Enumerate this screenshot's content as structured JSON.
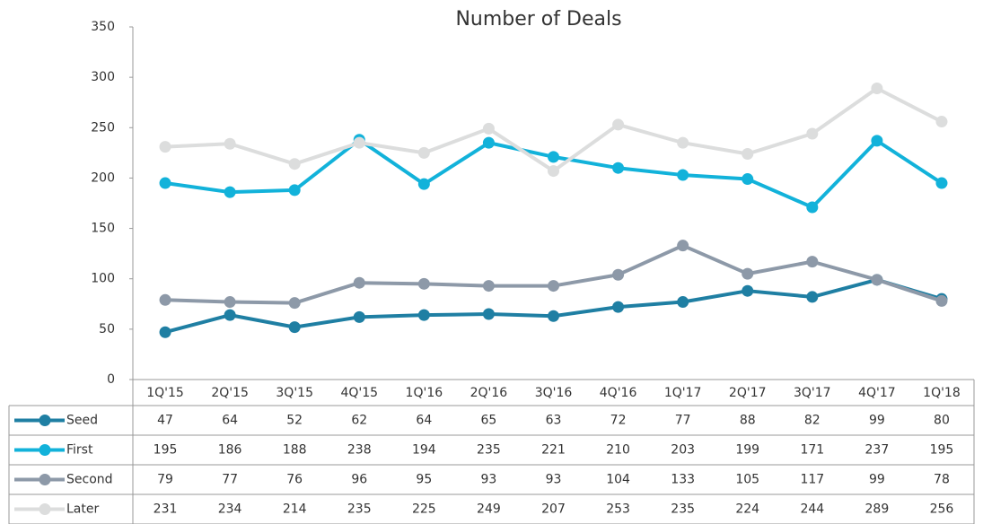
{
  "chart_data": {
    "type": "line",
    "title": "Number of Deals",
    "categories": [
      "1Q'15",
      "2Q'15",
      "3Q'15",
      "4Q'15",
      "1Q'16",
      "2Q'16",
      "3Q'16",
      "4Q'16",
      "1Q'17",
      "2Q'17",
      "3Q'17",
      "4Q'17",
      "1Q'18"
    ],
    "series": [
      {
        "name": "Seed",
        "color": "#1f7fa3",
        "values": [
          47,
          64,
          52,
          62,
          64,
          65,
          63,
          72,
          77,
          88,
          82,
          99,
          80
        ]
      },
      {
        "name": "First",
        "color": "#12b2da",
        "values": [
          195,
          186,
          188,
          238,
          194,
          235,
          221,
          210,
          203,
          199,
          171,
          237,
          195
        ]
      },
      {
        "name": "Second",
        "color": "#8d99a8",
        "values": [
          79,
          77,
          76,
          96,
          95,
          93,
          93,
          104,
          133,
          105,
          117,
          99,
          78
        ]
      },
      {
        "name": "Later",
        "color": "#dcdddd",
        "values": [
          231,
          234,
          214,
          235,
          225,
          249,
          207,
          253,
          235,
          224,
          244,
          289,
          256
        ]
      }
    ],
    "ylim": [
      0,
      350
    ],
    "yticks": [
      0,
      50,
      100,
      150,
      200,
      250,
      300,
      350
    ]
  }
}
